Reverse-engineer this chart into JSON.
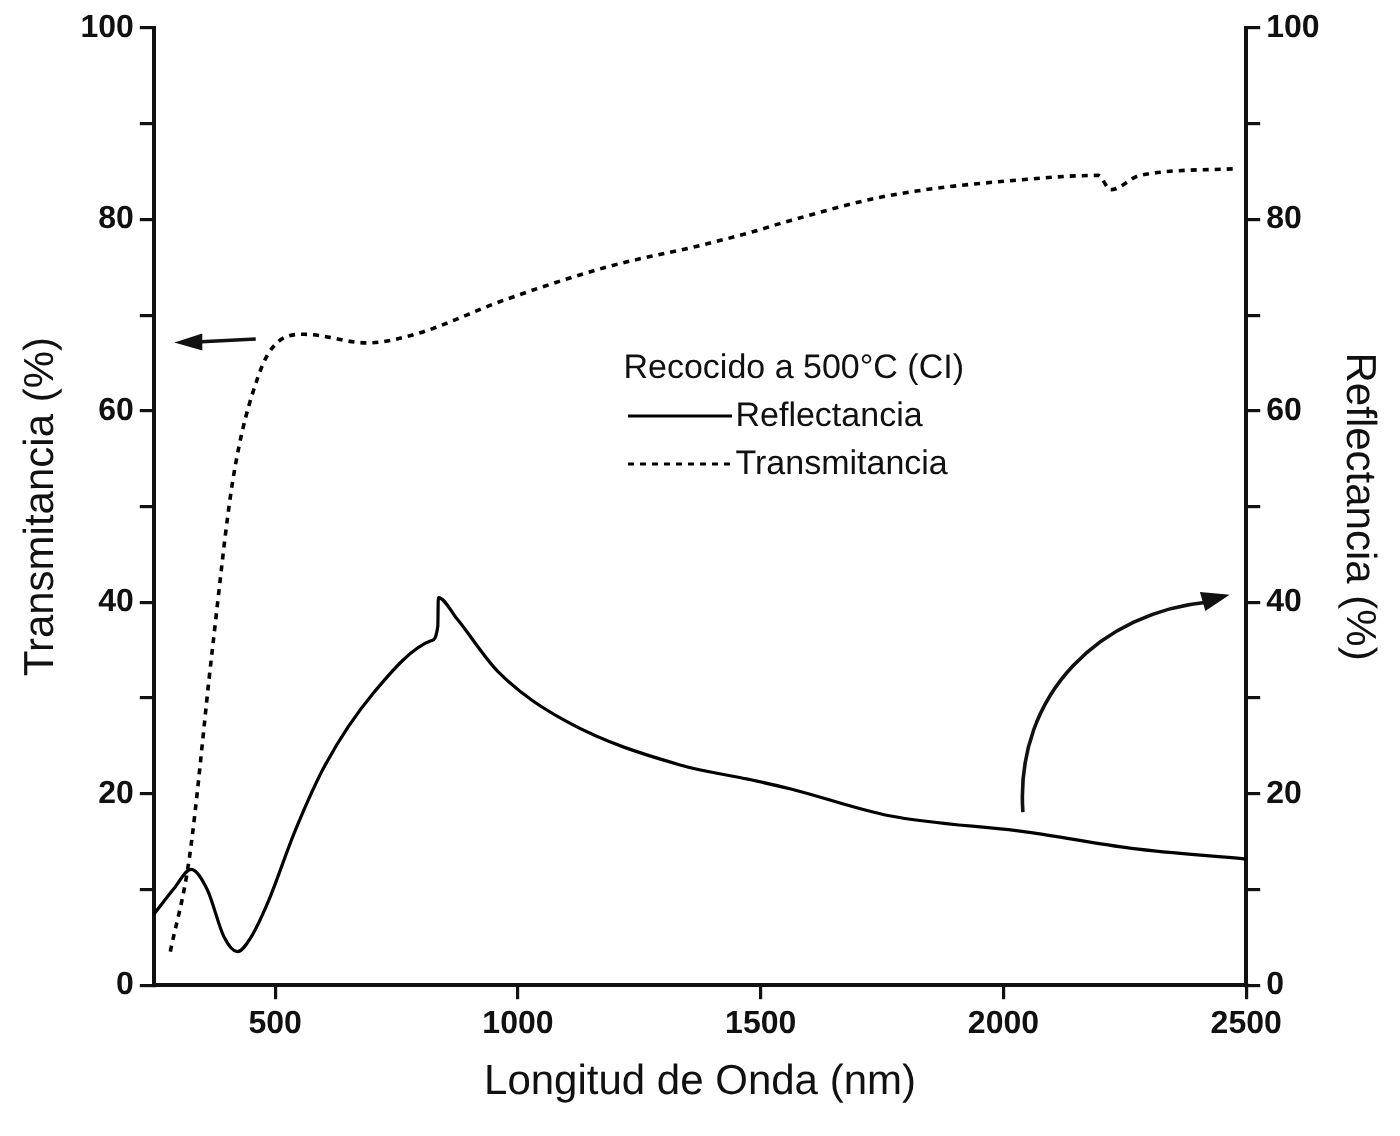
{
  "chart_data": {
    "type": "line",
    "xlabel": "Longitud de Onda (nm)",
    "ylabel": "Transmitancia (%)",
    "y2label": "Reflectancia (%)",
    "legend_title": "Recocido a 500°C (CI)",
    "legend": "right",
    "grid": false,
    "marker": "none",
    "xlim": [
      250,
      2500
    ],
    "xticks": [
      500,
      1000,
      1500,
      2000,
      2500
    ],
    "ylim": [
      0,
      100
    ],
    "yticks": [
      0,
      {
        "value": 10,
        "label": null
      },
      20,
      {
        "value": 30,
        "label": null
      },
      40,
      {
        "value": 50,
        "label": null
      },
      60,
      {
        "value": 70,
        "label": null
      },
      80,
      {
        "value": 90,
        "label": null
      },
      100
    ],
    "y2lim": [
      0,
      100
    ],
    "y2ticks": [
      0,
      {
        "value": 10,
        "label": null
      },
      20,
      {
        "value": 30,
        "label": null
      },
      40,
      {
        "value": 50,
        "label": null
      },
      60,
      {
        "value": 70,
        "label": null
      },
      80,
      {
        "value": 90,
        "label": null
      },
      100
    ],
    "series": [
      {
        "name": "Reflectancia",
        "color": "#000000",
        "axis": "y2",
        "line_style": "solid",
        "x": [
          250,
          290,
          327,
          360,
          395,
          422,
          450,
          487,
          540,
          603,
          702,
          822,
          835,
          836,
          874,
          960,
          1102,
          1334,
          1476,
          1562,
          1765,
          2049,
          2264,
          2496
        ],
        "values": [
          7.4,
          10,
          12.1,
          10,
          5,
          3.5,
          5,
          8.9,
          16,
          23,
          30.5,
          36,
          37.5,
          40.5,
          38.3,
          32.7,
          27.5,
          23,
          21.5,
          20.5,
          17.7,
          16,
          14.3,
          13.2
        ]
      },
      {
        "name": "Transmitancia",
        "color": "#000000",
        "axis": "y",
        "line_style": "dotted",
        "x": [
          284,
          323,
          370,
          413,
          465,
          508,
          560,
          689,
          788,
          973,
          1188,
          1377,
          1476,
          1562,
          1765,
          2049,
          2195,
          2221,
          2281,
          2479
        ],
        "values": [
          3.5,
          13.2,
          34.8,
          52.8,
          63.6,
          67.3,
          68,
          67.1,
          68,
          71.6,
          75.1,
          77.3,
          78.6,
          79.9,
          82.5,
          84.2,
          84.6,
          83.1,
          84.6,
          85.3
        ]
      }
    ]
  }
}
